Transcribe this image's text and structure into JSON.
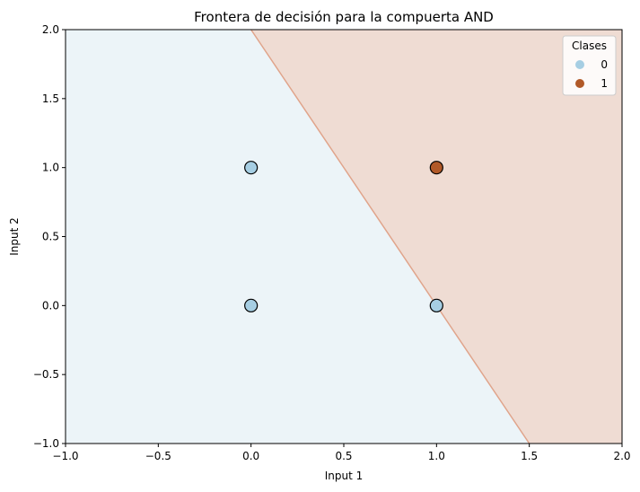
{
  "chart_data": {
    "type": "scatter",
    "title": "Frontera de decisión para la compuerta AND",
    "xlabel": "Input 1",
    "ylabel": "Input 2",
    "xlim": [
      -1.0,
      2.0
    ],
    "ylim": [
      -1.0,
      2.0
    ],
    "x_ticks": [
      "−1.0",
      "−0.5",
      "0.0",
      "0.5",
      "1.0",
      "1.5",
      "2.0"
    ],
    "x_tick_values": [
      -1.0,
      -0.5,
      0.0,
      0.5,
      1.0,
      1.5,
      2.0
    ],
    "y_ticks": [
      "−1.0",
      "−0.5",
      "0.0",
      "0.5",
      "1.0",
      "1.5",
      "2.0"
    ],
    "y_tick_values": [
      -1.0,
      -0.5,
      0.0,
      0.5,
      1.0,
      1.5,
      2.0
    ],
    "grid": false,
    "legend": {
      "title": "Clases",
      "placement": "top-right",
      "entries": [
        {
          "label": "0",
          "color": "#a6cee3"
        },
        {
          "label": "1",
          "color": "#b15928"
        }
      ]
    },
    "points": [
      {
        "x": 0,
        "y": 0,
        "class": 0
      },
      {
        "x": 0,
        "y": 1,
        "class": 0
      },
      {
        "x": 1,
        "y": 0,
        "class": 0
      },
      {
        "x": 1,
        "y": 1,
        "class": 1
      }
    ],
    "decision_boundary": {
      "points": [
        [
          0.0,
          2.0
        ],
        [
          1.5,
          -1.0
        ]
      ],
      "region_0_color": "#ecf4f8",
      "region_1_color": "#efdcd3",
      "boundary_color": "#e0a48b"
    }
  }
}
